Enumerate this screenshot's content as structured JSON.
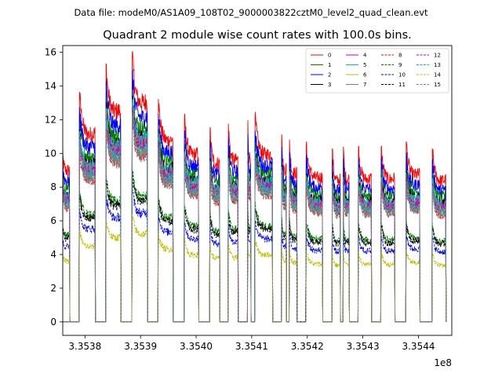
{
  "chart_data": {
    "type": "line",
    "suptitle": "Data file: modeM0/AS1A09_108T02_9000003822cztM0_level2_quad_clean.evt",
    "title": "Quadrant 2 module wise count rates with 100.0s bins.",
    "xlabel": "",
    "ylabel": "",
    "x_offset_label": "1e8",
    "xlim": [
      3.35376,
      3.35446
    ],
    "ylim": [
      -0.8,
      16.4
    ],
    "x_ticks": [
      3.3538,
      3.3539,
      3.354,
      3.3541,
      3.3542,
      3.3543,
      3.3544
    ],
    "x_tick_labels": [
      "3.3538",
      "3.3539",
      "3.3540",
      "3.3541",
      "3.3542",
      "3.3543",
      "3.3544"
    ],
    "y_ticks": [
      0,
      2,
      4,
      6,
      8,
      10,
      12,
      14,
      16
    ],
    "y_tick_labels": [
      "0",
      "2",
      "4",
      "6",
      "8",
      "10",
      "12",
      "14",
      "16"
    ],
    "legend": {
      "placement": "top-right",
      "columns": 4
    },
    "orbit_segments": [
      {
        "start": 3.353758,
        "end": 3.353772,
        "peak": 10.5
      },
      {
        "start": 3.35379,
        "end": 3.353818,
        "peak": 13.0
      },
      {
        "start": 3.353838,
        "end": 3.353864,
        "peak": 14.6
      },
      {
        "start": 3.353885,
        "end": 3.353912,
        "peak": 15.2
      },
      {
        "start": 3.353932,
        "end": 3.353958,
        "peak": 12.6
      },
      {
        "start": 3.353979,
        "end": 3.354004,
        "peak": 11.6
      },
      {
        "start": 3.354025,
        "end": 3.354042,
        "peak": 11.0
      },
      {
        "start": 3.354058,
        "end": 3.354075,
        "peak": 11.2
      },
      {
        "start": 3.354093,
        "end": 3.354098,
        "peak": 11.4
      },
      {
        "start": 3.354106,
        "end": 3.354137,
        "peak": 11.6
      },
      {
        "start": 3.354154,
        "end": 3.354162,
        "peak": 10.6
      },
      {
        "start": 3.354168,
        "end": 3.354181,
        "peak": 10.3
      },
      {
        "start": 3.354198,
        "end": 3.354227,
        "peak": 10.0
      },
      {
        "start": 3.354245,
        "end": 3.354259,
        "peak": 9.8
      },
      {
        "start": 3.354265,
        "end": 3.354275,
        "peak": 9.9
      },
      {
        "start": 3.354292,
        "end": 3.354315,
        "peak": 9.9
      },
      {
        "start": 3.354333,
        "end": 3.354357,
        "peak": 9.9
      },
      {
        "start": 3.354378,
        "end": 3.354402,
        "peak": 10.2
      },
      {
        "start": 3.354425,
        "end": 3.354449,
        "peak": 9.8
      }
    ],
    "series": [
      {
        "name": "0",
        "color": "#ff0000",
        "dash": "solid",
        "level": 1.05
      },
      {
        "name": "1",
        "color": "#008000",
        "dash": "solid",
        "level": 0.93
      },
      {
        "name": "2",
        "color": "#0000ff",
        "dash": "solid",
        "level": 0.98
      },
      {
        "name": "3",
        "color": "#000000",
        "dash": "solid",
        "level": 0.88
      },
      {
        "name": "4",
        "color": "#bf00bf",
        "dash": "solid",
        "level": 0.86
      },
      {
        "name": "5",
        "color": "#00bfbf",
        "dash": "solid",
        "level": 0.87
      },
      {
        "name": "6",
        "color": "#bfbf00",
        "dash": "solid",
        "level": 0.84
      },
      {
        "name": "7",
        "color": "#808080",
        "dash": "solid",
        "level": 0.85
      },
      {
        "name": "8",
        "color": "#ff0000",
        "dash": "dashed",
        "level": 0.8
      },
      {
        "name": "9",
        "color": "#008000",
        "dash": "dashed",
        "level": 0.6
      },
      {
        "name": "10",
        "color": "#0000ff",
        "dash": "dashed",
        "level": 0.52
      },
      {
        "name": "11",
        "color": "#000000",
        "dash": "dashed",
        "level": 0.58
      },
      {
        "name": "12",
        "color": "#bf00bf",
        "dash": "dashed",
        "level": 0.84
      },
      {
        "name": "13",
        "color": "#00bfbf",
        "dash": "dashed",
        "level": 0.82
      },
      {
        "name": "14",
        "color": "#bfbf00",
        "dash": "dashed",
        "level": 0.42
      },
      {
        "name": "15",
        "color": "#808080",
        "dash": "dashed",
        "level": 0.8
      }
    ]
  }
}
